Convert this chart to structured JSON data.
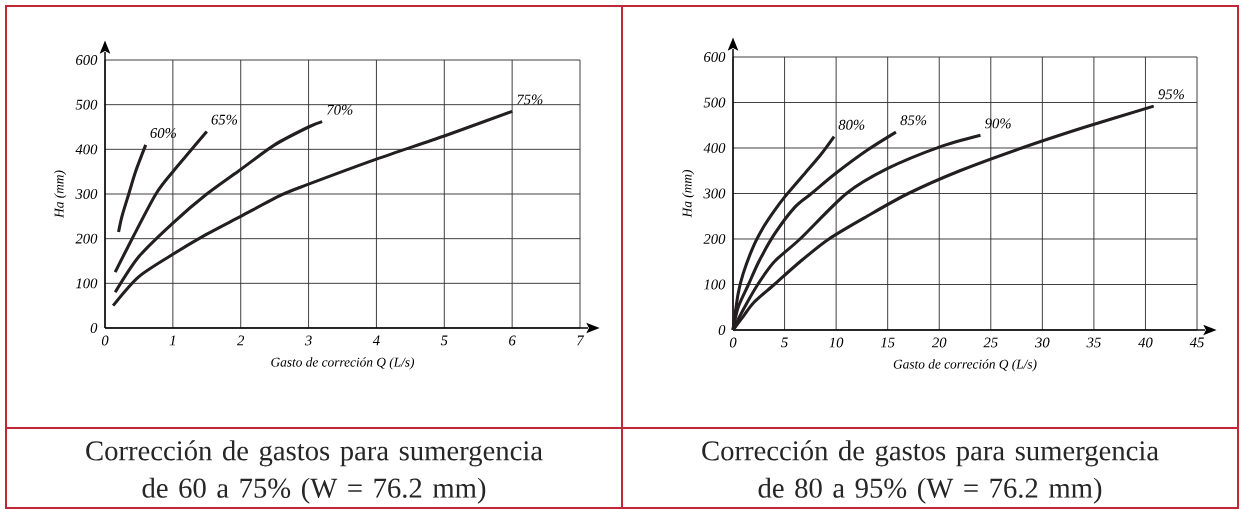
{
  "chart_data": [
    {
      "type": "line",
      "xlabel": "Gasto de correción Q (L/s)",
      "ylabel": "Ha (mm)",
      "xlim": [
        0,
        7
      ],
      "ylim": [
        0,
        600
      ],
      "xticks": [
        0,
        1,
        2,
        3,
        4,
        5,
        6,
        7
      ],
      "yticks": [
        0,
        100,
        200,
        300,
        400,
        500,
        600
      ],
      "grid": true,
      "marker": "none",
      "line_style": "solid",
      "series": [
        {
          "name": "60%",
          "color": "#231f20",
          "x": [
            0.2,
            0.25,
            0.35,
            0.45,
            0.6
          ],
          "values": [
            215,
            250,
            300,
            350,
            410
          ]
        },
        {
          "name": "65%",
          "color": "#231f20",
          "x": [
            0.15,
            0.4,
            0.75,
            1.0,
            1.25,
            1.5
          ],
          "values": [
            125,
            200,
            300,
            350,
            395,
            440
          ]
        },
        {
          "name": "70%",
          "color": "#231f20",
          "x": [
            0.15,
            0.5,
            1,
            1.5,
            2,
            2.5,
            3,
            3.2
          ],
          "values": [
            80,
            160,
            235,
            300,
            355,
            410,
            450,
            462
          ]
        },
        {
          "name": "75%",
          "color": "#231f20",
          "x": [
            0.12,
            0.5,
            1,
            1.5,
            2,
            2.6,
            3,
            4,
            5,
            6
          ],
          "values": [
            50,
            115,
            165,
            210,
            250,
            298,
            322,
            378,
            430,
            485
          ]
        }
      ],
      "annotations": [
        "Corrección de gastos para sumergencia de 60 a 75%  (W = 76.2 mm)"
      ]
    },
    {
      "type": "line",
      "xlabel": "Gasto de correción Q (L/s)",
      "ylabel": "Ha (mm)",
      "xlim": [
        0,
        45
      ],
      "ylim": [
        0,
        600
      ],
      "xticks": [
        0,
        5,
        10,
        15,
        20,
        25,
        30,
        35,
        40,
        45
      ],
      "yticks": [
        0,
        100,
        200,
        300,
        400,
        500,
        600
      ],
      "grid": true,
      "marker": "none",
      "line_style": "solid",
      "series": [
        {
          "name": "80%",
          "color": "#231f20",
          "x": [
            0,
            0.5,
            1,
            2,
            3,
            4,
            5,
            7,
            8.5,
            9.8
          ],
          "values": [
            0,
            80,
            125,
            185,
            228,
            262,
            292,
            345,
            385,
            425
          ]
        },
        {
          "name": "85%",
          "color": "#231f20",
          "x": [
            0,
            0.5,
            1.5,
            2.5,
            4,
            6,
            7.6,
            10,
            13,
            15.8
          ],
          "values": [
            0,
            50,
            100,
            150,
            210,
            270,
            300,
            345,
            395,
            435
          ]
        },
        {
          "name": "90%",
          "color": "#231f20",
          "x": [
            0,
            1,
            2.4,
            4,
            6.5,
            11,
            15,
            20,
            24
          ],
          "values": [
            0,
            45,
            100,
            150,
            200,
            300,
            355,
            402,
            428
          ]
        },
        {
          "name": "95%",
          "color": "#231f20",
          "x": [
            0,
            1,
            2,
            4,
            6.5,
            9.3,
            13,
            17,
            22,
            28,
            34,
            40.8
          ],
          "values": [
            0,
            30,
            60,
            100,
            150,
            200,
            250,
            300,
            350,
            400,
            445,
            492
          ]
        }
      ],
      "annotations": [
        "Corrección de gastos para sumergencia de 80 a 95% (W = 76.2 mm)"
      ]
    }
  ]
}
